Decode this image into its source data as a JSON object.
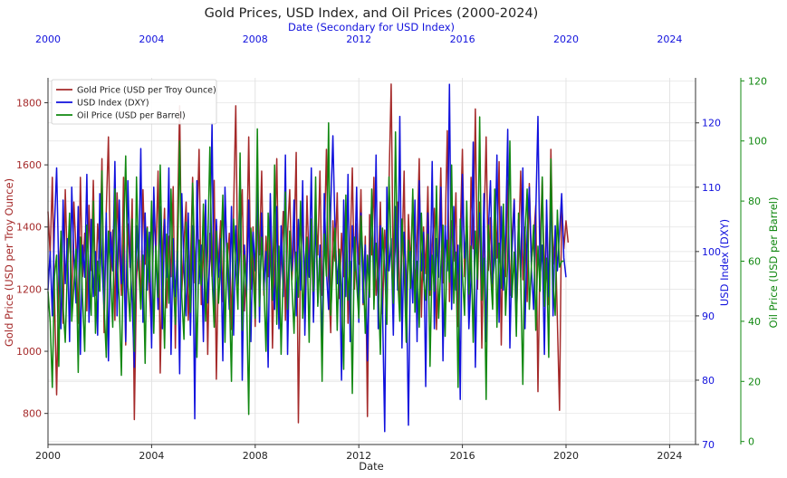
{
  "chart_data": {
    "type": "line",
    "title": "Gold Prices, USD Index, and Oil Prices (2000-2024)",
    "xlabel": "Date",
    "x2label": "Date (Secondary for USD Index)",
    "xlim": [
      2000,
      2025
    ],
    "x_ticks": [
      "2000",
      "2004",
      "2008",
      "2012",
      "2016",
      "2020",
      "2024"
    ],
    "grid": true,
    "legend_position": "top-left",
    "axes": {
      "gold": {
        "label": "Gold Price (USD per Troy Ounce)",
        "ylim": [
          700,
          1880
        ],
        "ticks": [
          800,
          1000,
          1200,
          1400,
          1600,
          1800
        ],
        "color": "#a52a2a"
      },
      "usd": {
        "label": "USD Index (DXY)",
        "ylim": [
          70,
          127
        ],
        "ticks": [
          70,
          80,
          90,
          100,
          110,
          120
        ],
        "color": "#1111dd"
      },
      "oil": {
        "label": "Oil Price (USD per Barrel)",
        "ylim": [
          -1,
          121
        ],
        "ticks": [
          0,
          20,
          40,
          60,
          80,
          100,
          120
        ],
        "color": "#118811"
      }
    },
    "series": [
      {
        "name": "Gold Price (USD per Troy Ounce)",
        "axis": "gold",
        "color": "#a52a2a",
        "x_start": 2000.0,
        "x_step": 0.08333,
        "values": [
          1450,
          1310,
          1560,
          1180,
          860,
          1240,
          1370,
          1090,
          1520,
          1260,
          1410,
          1150,
          1480,
          1320,
          1090,
          1560,
          1240,
          1380,
          1130,
          1470,
          1260,
          1550,
          1180,
          1410,
          1300,
          1620,
          1060,
          1450,
          1690,
          1230,
          1390,
          1100,
          1510,
          1330,
          1180,
          1560,
          1020,
          1410,
          1270,
          1490,
          780,
          1230,
          1360,
          1140,
          1520,
          1280,
          1400,
          1190,
          1060,
          1450,
          1320,
          1580,
          930,
          1290,
          1460,
          1140,
          1370,
          1240,
          1530,
          1010,
          1420,
          1790,
          1190,
          1350,
          1480,
          1100,
          1280,
          1560,
          1220,
          1390,
          1650,
          1150,
          1310,
          1470,
          990,
          1380,
          1240,
          1550,
          910,
          1290,
          1420,
          1160,
          1500,
          1280,
          1380,
          1070,
          1460,
          1790,
          1210,
          1340,
          1520,
          1130,
          1280,
          1690,
          1200,
          1400,
          1080,
          1450,
          1310,
          1580,
          1180,
          1370,
          1240,
          1480,
          1010,
          1330,
          1620,
          1160,
          1290,
          1450,
          1100,
          1380,
          1520,
          1230,
          1350,
          1640,
          770,
          1290,
          1430,
          1170,
          1500,
          1260,
          1390,
          1110,
          1460,
          1310,
          1580,
          1180,
          1340,
          1650,
          1230,
          1060,
          1420,
          1290,
          1510,
          1170,
          1380,
          1240,
          1470,
          1090,
          1330,
          1590,
          1200,
          1410,
          1280,
          1520,
          1150,
          1370,
          790,
          1440,
          1310,
          1560,
          1180,
          1270,
          1480,
          1120,
          1390,
          1260,
          1540,
          1860,
          1220,
          1350,
          1480,
          1150,
          1310,
          1580,
          1030,
          1440,
          1270,
          1500,
          1190,
          1360,
          1620,
          1110,
          1400,
          1250,
          1530,
          1180,
          1340,
          1460,
          1070,
          1310,
          1590,
          1220,
          1380,
          1710,
          1160,
          1420,
          1290,
          1510,
          1080,
          1370,
          1650,
          1240,
          1450,
          1120,
          1560,
          1330,
          1780,
          1200,
          1480,
          1010,
          1390,
          1690,
          1260,
          1430,
          1150,
          1520,
          1300,
          1610,
          1020,
          1410,
          1240,
          1550,
          1180,
          1370,
          1490,
          1100,
          1320,
          1580,
          1230,
          1400,
          1160,
          1540,
          1290,
          1360,
          1470,
          870,
          1330,
          1560,
          1210,
          1440,
          1150,
          1650,
          1280,
          1390,
          1100,
          810,
          1480,
          1330,
          1420,
          1350
        ]
      },
      {
        "name": "USD Index (DXY)",
        "axis": "usd",
        "color": "#1111dd",
        "x_start": 2000.0,
        "x_step": 0.08333,
        "values": [
          94,
          100,
          90,
          104,
          113,
          97,
          88,
          108,
          95,
          102,
          86,
          110,
          99,
          92,
          107,
          84,
          101,
          96,
          112,
          89,
          105,
          93,
          100,
          87,
          109,
          98,
          91,
          106,
          83,
          103,
          97,
          114,
          90,
          108,
          95,
          101,
          86,
          111,
          99,
          92,
          82,
          104,
          97,
          116,
          89,
          106,
          94,
          103,
          85,
          110,
          99,
          91,
          107,
          88,
          105,
          96,
          113,
          84,
          102,
          93,
          100,
          81,
          109,
          97,
          90,
          106,
          87,
          104,
          74,
          111,
          95,
          101,
          86,
          108,
          92,
          99,
          120,
          89,
          105,
          96,
          102,
          83,
          110,
          98,
          91,
          107,
          87,
          104,
          95,
          113,
          80,
          101,
          93,
          108,
          86,
          103,
          97,
          111,
          89,
          106,
          94,
          100,
          82,
          109,
          96,
          91,
          107,
          88,
          104,
          93,
          115,
          84,
          101,
          97,
          108,
          90,
          105,
          94,
          111,
          87,
          102,
          96,
          113,
          89,
          106,
          92,
          101,
          84,
          109,
          97,
          91,
          107,
          118,
          103,
          95,
          100,
          80,
          108,
          93,
          112,
          86,
          104,
          97,
          110,
          89,
          106,
          92,
          101,
          83,
          99,
          108,
          95,
          115,
          88,
          104,
          91,
          72,
          110,
          97,
          102,
          87,
          107,
          94,
          121,
          85,
          103,
          96,
          73,
          100,
          92,
          108,
          86,
          111,
          97,
          103,
          79,
          106,
          94,
          114,
          88,
          102,
          96,
          110,
          83,
          104,
          97,
          126,
          91,
          107,
          94,
          101,
          77,
          112,
          99,
          104,
          88,
          96,
          117,
          82,
          100,
          106,
          93,
          109,
          86,
          103,
          111,
          95,
          99,
          115,
          89,
          107,
          94,
          102,
          119,
          85,
          100,
          108,
          92,
          105,
          96,
          113,
          88,
          103,
          110,
          97,
          91,
          106,
          121,
          96,
          101,
          84,
          108,
          93,
          110,
          90,
          104,
          97,
          103,
          109,
          99,
          96
        ]
      },
      {
        "name": "Oil Price (USD per Barrel)",
        "axis": "oil",
        "color": "#118811",
        "x_start": 2000.0,
        "x_step": 0.08333,
        "values": [
          50,
          40,
          18,
          55,
          62,
          25,
          70,
          45,
          33,
          58,
          76,
          40,
          52,
          64,
          23,
          68,
          48,
          30,
          72,
          56,
          42,
          80,
          36,
          60,
          50,
          90,
          45,
          28,
          70,
          55,
          38,
          84,
          62,
          47,
          22,
          66,
          95,
          52,
          40,
          74,
          30,
          88,
          58,
          44,
          62,
          26,
          71,
          53,
          80,
          36,
          65,
          48,
          92,
          57,
          31,
          69,
          46,
          84,
          55,
          39,
          60,
          100,
          48,
          34,
          73,
          57,
          43,
          86,
          61,
          28,
          67,
          52,
          79,
          40,
          64,
          98,
          55,
          38,
          70,
          46,
          59,
          82,
          33,
          66,
          51,
          20,
          74,
          58,
          44,
          96,
          37,
          62,
          49,
          9,
          71,
          56,
          41,
          104,
          45,
          68,
          53,
          30,
          76,
          60,
          47,
          92,
          39,
          65,
          29,
          57,
          83,
          44,
          70,
          52,
          36,
          63,
          48,
          80,
          41,
          59,
          68,
          33,
          74,
          50,
          88,
          45,
          61,
          20,
          69,
          55,
          106,
          42,
          58,
          71,
          37,
          64,
          50,
          24,
          82,
          47,
          60,
          16,
          68,
          53,
          41,
          75,
          59,
          36,
          62,
          48,
          84,
          44,
          66,
          52,
          29,
          71,
          57,
          39,
          88,
          63,
          46,
          103,
          55,
          40,
          74,
          58,
          33,
          67,
          51,
          84,
          43,
          60,
          38,
          76,
          54,
          47,
          69,
          25,
          62,
          50,
          85,
          41,
          58,
          72,
          35,
          67,
          53,
          92,
          46,
          63,
          18,
          74,
          56,
          42,
          80,
          49,
          65,
          33,
          70,
          54,
          108,
          47,
          61,
          14,
          72,
          57,
          44,
          84,
          38,
          66,
          51,
          79,
          42,
          60,
          100,
          48,
          63,
          35,
          76,
          55,
          19,
          69,
          84,
          44,
          59,
          72,
          37,
          65,
          50,
          88,
          45,
          61,
          28,
          94,
          53,
          42,
          77,
          58,
          60,
          60
        ]
      }
    ]
  }
}
